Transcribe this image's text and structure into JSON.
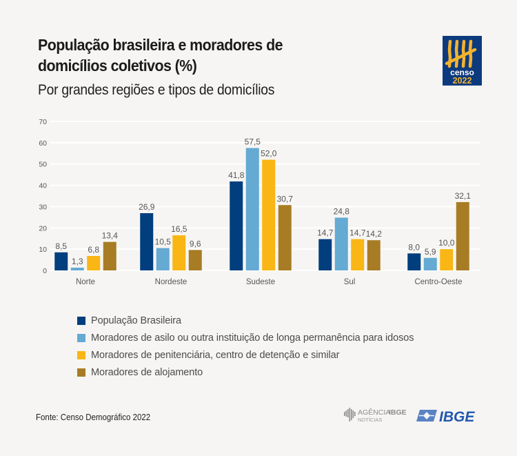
{
  "header": {
    "title": "População brasileira e moradores de domicílios coletivos (%)",
    "subtitle": "Por grandes regiões e tipos de domicílios",
    "logo": {
      "icon": "censo-2022-logo",
      "line1": "censo",
      "line2": "2022"
    }
  },
  "colors": {
    "populacao": "#003e7e",
    "asilo": "#64aad2",
    "penitenciaria": "#f9b614",
    "alojamento": "#a87c25",
    "grid": "#ffffff",
    "tick_text": "#555555",
    "value_text": "#555555"
  },
  "chart_data": {
    "type": "bar",
    "title": "População brasileira e moradores de domicílios coletivos (%)",
    "subtitle": "Por grandes regiões e tipos de domicílios",
    "xlabel": "",
    "ylabel": "",
    "ylim": [
      0,
      70
    ],
    "yticks": [
      0,
      10,
      20,
      30,
      40,
      50,
      60,
      70
    ],
    "grid": true,
    "legend_position": "bottom-left",
    "categories": [
      "Norte",
      "Nordeste",
      "Sudeste",
      "Sul",
      "Centro-Oeste"
    ],
    "series": [
      {
        "name": "População Brasileira",
        "color_key": "populacao",
        "values": [
          8.5,
          26.9,
          41.8,
          14.7,
          8.0
        ],
        "labels": [
          "8,5",
          "26,9",
          "41,8",
          "14,7",
          "8,0"
        ]
      },
      {
        "name": "Moradores de asilo ou outra instituição de longa permanência para idosos",
        "color_key": "asilo",
        "values": [
          1.3,
          10.5,
          57.5,
          24.8,
          5.9
        ],
        "labels": [
          "1,3",
          "10,5",
          "57,5",
          "24,8",
          "5,9"
        ]
      },
      {
        "name": "Moradores de penitenciária, centro de detenção e similar",
        "color_key": "penitenciaria",
        "values": [
          6.8,
          16.5,
          52.0,
          14.7,
          10.0
        ],
        "labels": [
          "6,8",
          "16,5",
          "52,0",
          "14,7",
          "10,0"
        ]
      },
      {
        "name": "Moradores de alojamento",
        "color_key": "alojamento",
        "values": [
          13.4,
          9.6,
          30.7,
          14.2,
          32.1
        ],
        "labels": [
          "13,4",
          "9,6",
          "30,7",
          "14,2",
          "32,1"
        ]
      }
    ]
  },
  "footer": {
    "source": "Fonte: Censo Demográfico 2022",
    "agencia_logo": {
      "icon": "agencia-ibge-logo",
      "line1": "AGÊNCIA",
      "line1b": "IBGE",
      "line2": "NOTÍCIAS"
    },
    "ibge_logo": {
      "icon": "ibge-logo",
      "text": "IBGE"
    }
  }
}
